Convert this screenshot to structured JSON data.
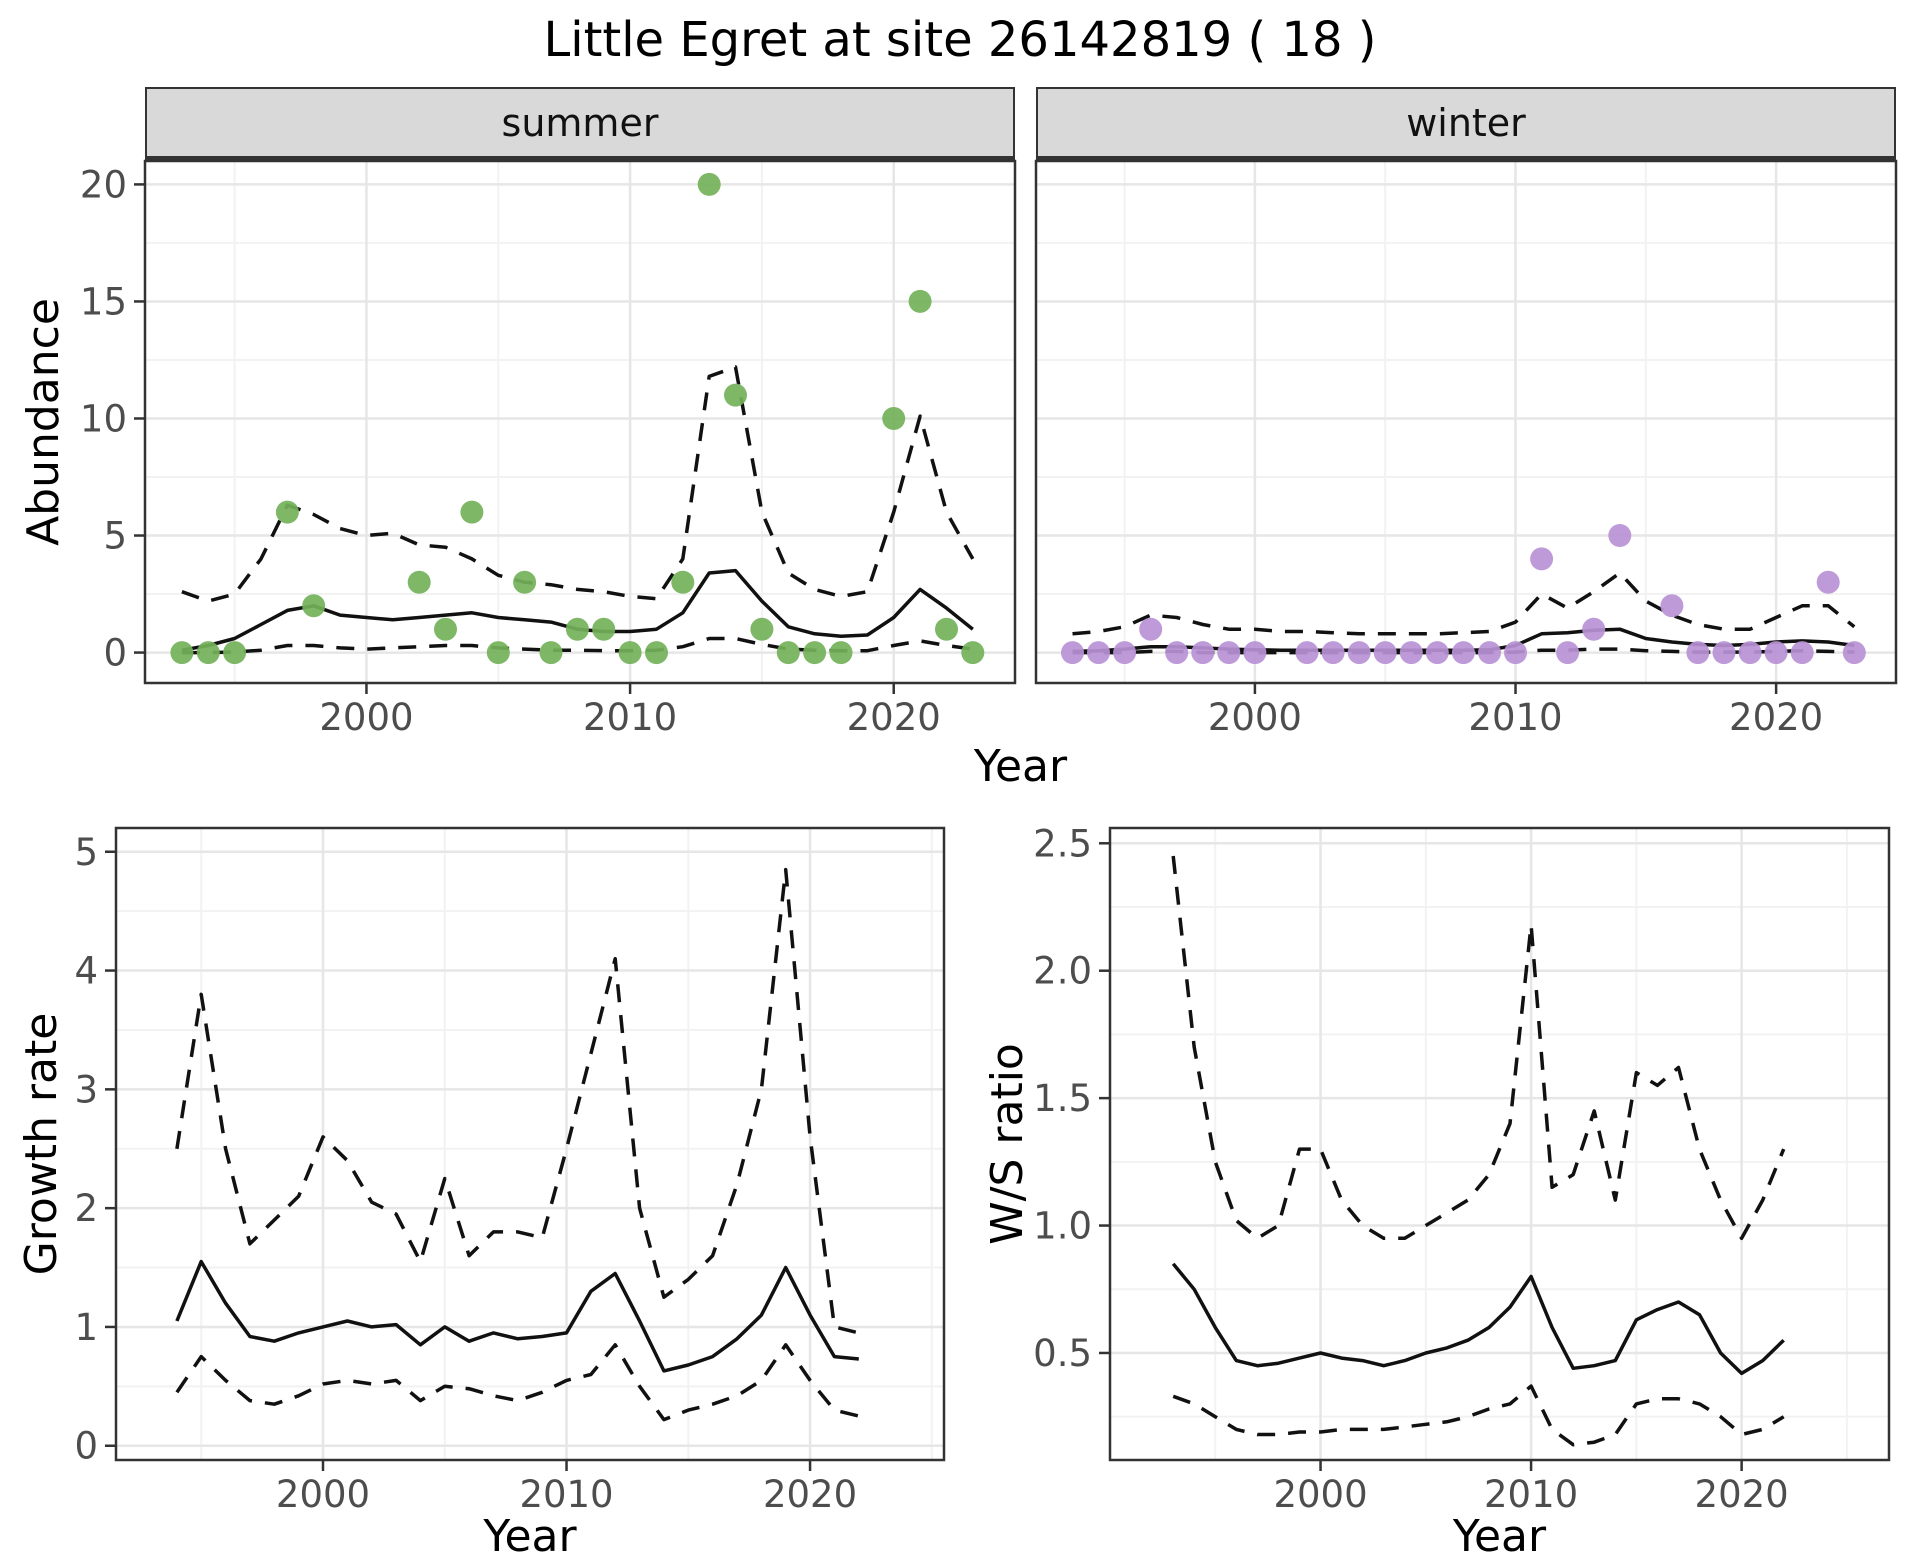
{
  "title": "Little Egret at site 26142819 ( 18 )",
  "facets": [
    {
      "label": "summer"
    },
    {
      "label": "winter"
    }
  ],
  "axes": {
    "year": "Year",
    "abundance": "Abundance",
    "growth": "Growth rate",
    "ws": "W/S ratio"
  },
  "colors": {
    "summer_point": "#73b25a",
    "winter_point": "#b892d5",
    "line": "#111111",
    "grid_major": "#e6e6e6",
    "grid_minor": "#f2f2f2",
    "panel_border": "#333333",
    "tick_mark": "#333333",
    "axis_text": "#4d4d4d",
    "strip_bg": "#d9d9d9",
    "panel_bg": "#ffffff"
  },
  "chart_data": [
    {
      "id": "abundance-summer",
      "type": "scatter",
      "facet": "summer",
      "title": "",
      "xlabel": "Year",
      "ylabel": "Abundance",
      "x_domain": [
        1991.6,
        2024.6
      ],
      "y_domain": [
        -1.3,
        21.0
      ],
      "x_ticks": [
        2000,
        2010,
        2020
      ],
      "x_tick_labels": [
        "2000",
        "2010",
        "2020"
      ],
      "y_ticks": [
        0,
        5,
        10,
        15,
        20
      ],
      "y_tick_labels": [
        "0",
        "5",
        "10",
        "15",
        "20"
      ],
      "x": [
        1993,
        1994,
        1995,
        1996,
        1997,
        1998,
        1999,
        2000,
        2001,
        2002,
        2003,
        2004,
        2005,
        2006,
        2007,
        2008,
        2009,
        2010,
        2011,
        2012,
        2013,
        2014,
        2015,
        2016,
        2017,
        2018,
        2019,
        2020,
        2021,
        2022,
        2023
      ],
      "series": [
        {
          "name": "fit",
          "style": "solid",
          "values": [
            0.1,
            0.3,
            0.6,
            1.2,
            1.8,
            2.0,
            1.6,
            1.5,
            1.4,
            1.5,
            1.6,
            1.7,
            1.5,
            1.4,
            1.3,
            1.0,
            0.9,
            0.9,
            1.0,
            1.7,
            3.4,
            3.5,
            2.2,
            1.1,
            0.8,
            0.7,
            0.75,
            1.5,
            2.7,
            1.9,
            1.0
          ]
        },
        {
          "name": "upper_ci",
          "style": "dashed",
          "values": [
            2.6,
            2.2,
            2.5,
            4.0,
            6.3,
            5.9,
            5.3,
            5.0,
            5.1,
            4.6,
            4.5,
            4.0,
            3.3,
            3.0,
            2.9,
            2.7,
            2.6,
            2.4,
            2.3,
            4.0,
            11.8,
            12.2,
            6.0,
            3.4,
            2.7,
            2.4,
            2.6,
            6.0,
            10.1,
            6.0,
            4.0
          ]
        },
        {
          "name": "lower_ci",
          "style": "dashed",
          "values": [
            0.0,
            0.0,
            0.02,
            0.1,
            0.3,
            0.3,
            0.2,
            0.15,
            0.2,
            0.25,
            0.3,
            0.3,
            0.2,
            0.15,
            0.1,
            0.1,
            0.08,
            0.08,
            0.1,
            0.25,
            0.6,
            0.6,
            0.35,
            0.15,
            0.1,
            0.08,
            0.08,
            0.3,
            0.5,
            0.3,
            0.15
          ]
        }
      ],
      "points": {
        "x": [
          1993,
          1994,
          1995,
          1997,
          1998,
          2002,
          2003,
          2004,
          2005,
          2006,
          2007,
          2008,
          2009,
          2010,
          2011,
          2012,
          2013,
          2014,
          2015,
          2016,
          2017,
          2018,
          2020,
          2021,
          2022,
          2023
        ],
        "y": [
          0,
          0,
          0,
          6,
          2,
          3,
          1,
          6,
          0,
          3,
          0,
          1,
          1,
          0,
          0,
          3,
          20,
          11,
          1,
          0,
          0,
          0,
          10,
          15,
          1,
          0
        ],
        "color": "#73b25a"
      }
    },
    {
      "id": "abundance-winter",
      "type": "scatter",
      "facet": "winter",
      "title": "",
      "xlabel": "Year",
      "ylabel": "Abundance",
      "x_domain": [
        1991.6,
        2024.6
      ],
      "y_domain": [
        -1.3,
        21.0
      ],
      "x_ticks": [
        2000,
        2010,
        2020
      ],
      "x_tick_labels": [
        "2000",
        "2010",
        "2020"
      ],
      "y_ticks": [
        0,
        5,
        10,
        15,
        20
      ],
      "y_tick_labels": [
        "0",
        "5",
        "10",
        "15",
        "20"
      ],
      "x": [
        1993,
        1994,
        1995,
        1996,
        1997,
        1998,
        1999,
        2000,
        2001,
        2002,
        2003,
        2004,
        2005,
        2006,
        2007,
        2008,
        2009,
        2010,
        2011,
        2012,
        2013,
        2014,
        2015,
        2016,
        2017,
        2018,
        2019,
        2020,
        2021,
        2022,
        2023
      ],
      "series": [
        {
          "name": "fit",
          "style": "solid",
          "values": [
            0.05,
            0.08,
            0.15,
            0.25,
            0.25,
            0.2,
            0.15,
            0.12,
            0.1,
            0.1,
            0.1,
            0.1,
            0.1,
            0.1,
            0.1,
            0.1,
            0.12,
            0.3,
            0.8,
            0.85,
            0.95,
            1.0,
            0.6,
            0.45,
            0.35,
            0.3,
            0.35,
            0.45,
            0.5,
            0.45,
            0.3
          ]
        },
        {
          "name": "upper_ci",
          "style": "dashed",
          "values": [
            0.8,
            0.9,
            1.1,
            1.6,
            1.5,
            1.2,
            1.0,
            1.0,
            0.9,
            0.9,
            0.85,
            0.8,
            0.8,
            0.8,
            0.8,
            0.85,
            0.9,
            1.3,
            2.5,
            1.9,
            2.6,
            3.4,
            2.2,
            1.6,
            1.2,
            1.0,
            1.0,
            1.5,
            2.0,
            2.0,
            1.1
          ]
        },
        {
          "name": "lower_ci",
          "style": "dashed",
          "values": [
            0.0,
            0.0,
            0.0,
            0.05,
            0.05,
            0.0,
            0.0,
            0.0,
            0.0,
            0.0,
            0.0,
            0.0,
            0.0,
            0.0,
            0.0,
            0.0,
            0.0,
            0.02,
            0.1,
            0.1,
            0.15,
            0.15,
            0.08,
            0.05,
            0.02,
            0.02,
            0.02,
            0.05,
            0.08,
            0.05,
            0.02
          ]
        }
      ],
      "points": {
        "x": [
          1993,
          1994,
          1995,
          1996,
          1997,
          1998,
          1999,
          2000,
          2002,
          2003,
          2004,
          2005,
          2006,
          2007,
          2008,
          2009,
          2010,
          2011,
          2012,
          2013,
          2014,
          2016,
          2017,
          2018,
          2019,
          2020,
          2021,
          2022,
          2023
        ],
        "y": [
          0,
          0,
          0,
          1,
          0,
          0,
          0,
          0,
          0,
          0,
          0,
          0,
          0,
          0,
          0,
          0,
          0,
          4,
          0,
          1,
          5,
          2,
          0,
          0,
          0,
          0,
          0,
          3,
          0
        ],
        "color": "#b892d5"
      }
    },
    {
      "id": "growth-rate",
      "type": "line",
      "facet": "",
      "title": "",
      "xlabel": "Year",
      "ylabel": "Growth rate",
      "x_domain": [
        1991.5,
        2025.5
      ],
      "y_domain": [
        -0.12,
        5.2
      ],
      "x_ticks": [
        2000,
        2010,
        2020
      ],
      "x_tick_labels": [
        "2000",
        "2010",
        "2020"
      ],
      "y_ticks": [
        0,
        1,
        2,
        3,
        4,
        5
      ],
      "y_tick_labels": [
        "0",
        "1",
        "2",
        "3",
        "4",
        "5"
      ],
      "x": [
        1994,
        1995,
        1996,
        1997,
        1998,
        1999,
        2000,
        2001,
        2002,
        2003,
        2004,
        2005,
        2006,
        2007,
        2008,
        2009,
        2010,
        2011,
        2012,
        2013,
        2014,
        2015,
        2016,
        2017,
        2018,
        2019,
        2020,
        2021,
        2022
      ],
      "series": [
        {
          "name": "fit",
          "style": "solid",
          "values": [
            1.05,
            1.55,
            1.2,
            0.92,
            0.88,
            0.95,
            1.0,
            1.05,
            1.0,
            1.02,
            0.85,
            1.0,
            0.88,
            0.95,
            0.9,
            0.92,
            0.95,
            1.3,
            1.45,
            1.05,
            0.63,
            0.68,
            0.75,
            0.9,
            1.1,
            1.5,
            1.1,
            0.75,
            0.73
          ]
        },
        {
          "name": "upper_ci",
          "style": "dashed",
          "values": [
            2.5,
            3.8,
            2.5,
            1.7,
            1.9,
            2.1,
            2.6,
            2.4,
            2.05,
            1.95,
            1.55,
            2.25,
            1.6,
            1.8,
            1.8,
            1.75,
            2.5,
            3.3,
            4.1,
            2.0,
            1.25,
            1.4,
            1.6,
            2.2,
            3.0,
            4.85,
            2.6,
            1.0,
            0.95
          ]
        },
        {
          "name": "lower_ci",
          "style": "dashed",
          "values": [
            0.45,
            0.75,
            0.55,
            0.38,
            0.35,
            0.42,
            0.52,
            0.55,
            0.52,
            0.55,
            0.38,
            0.5,
            0.48,
            0.42,
            0.38,
            0.45,
            0.55,
            0.6,
            0.85,
            0.5,
            0.22,
            0.3,
            0.35,
            0.42,
            0.55,
            0.85,
            0.55,
            0.3,
            0.25
          ]
        }
      ]
    },
    {
      "id": "ws-ratio",
      "type": "line",
      "facet": "",
      "title": "",
      "xlabel": "Year",
      "ylabel": "W/S ratio",
      "x_domain": [
        1990.0,
        2027.0
      ],
      "y_domain": [
        0.08,
        2.56
      ],
      "x_ticks": [
        2000,
        2010,
        2020
      ],
      "x_tick_labels": [
        "2000",
        "2010",
        "2020"
      ],
      "y_ticks": [
        0.5,
        1.0,
        1.5,
        2.0,
        2.5
      ],
      "y_tick_labels": [
        "0.5",
        "1.0",
        "1.5",
        "2.0",
        "2.5"
      ],
      "x": [
        1993,
        1994,
        1995,
        1996,
        1997,
        1998,
        1999,
        2000,
        2001,
        2002,
        2003,
        2004,
        2005,
        2006,
        2007,
        2008,
        2009,
        2010,
        2011,
        2012,
        2013,
        2014,
        2015,
        2016,
        2017,
        2018,
        2019,
        2020,
        2021,
        2022
      ],
      "series": [
        {
          "name": "fit",
          "style": "solid",
          "values": [
            0.85,
            0.75,
            0.6,
            0.47,
            0.45,
            0.46,
            0.48,
            0.5,
            0.48,
            0.47,
            0.45,
            0.47,
            0.5,
            0.52,
            0.55,
            0.6,
            0.68,
            0.8,
            0.6,
            0.44,
            0.45,
            0.47,
            0.63,
            0.67,
            0.7,
            0.65,
            0.5,
            0.42,
            0.47,
            0.55
          ]
        },
        {
          "name": "upper_ci",
          "style": "dashed",
          "values": [
            2.45,
            1.7,
            1.25,
            1.02,
            0.95,
            1.0,
            1.3,
            1.3,
            1.1,
            1.0,
            0.95,
            0.95,
            1.0,
            1.05,
            1.1,
            1.2,
            1.4,
            2.18,
            1.15,
            1.2,
            1.45,
            1.1,
            1.6,
            1.55,
            1.62,
            1.3,
            1.1,
            0.95,
            1.1,
            1.3
          ]
        },
        {
          "name": "lower_ci",
          "style": "dashed",
          "values": [
            0.33,
            0.3,
            0.25,
            0.2,
            0.18,
            0.18,
            0.19,
            0.19,
            0.2,
            0.2,
            0.2,
            0.21,
            0.22,
            0.23,
            0.25,
            0.28,
            0.3,
            0.37,
            0.2,
            0.14,
            0.15,
            0.18,
            0.3,
            0.32,
            0.32,
            0.3,
            0.25,
            0.18,
            0.2,
            0.25
          ]
        }
      ]
    }
  ]
}
